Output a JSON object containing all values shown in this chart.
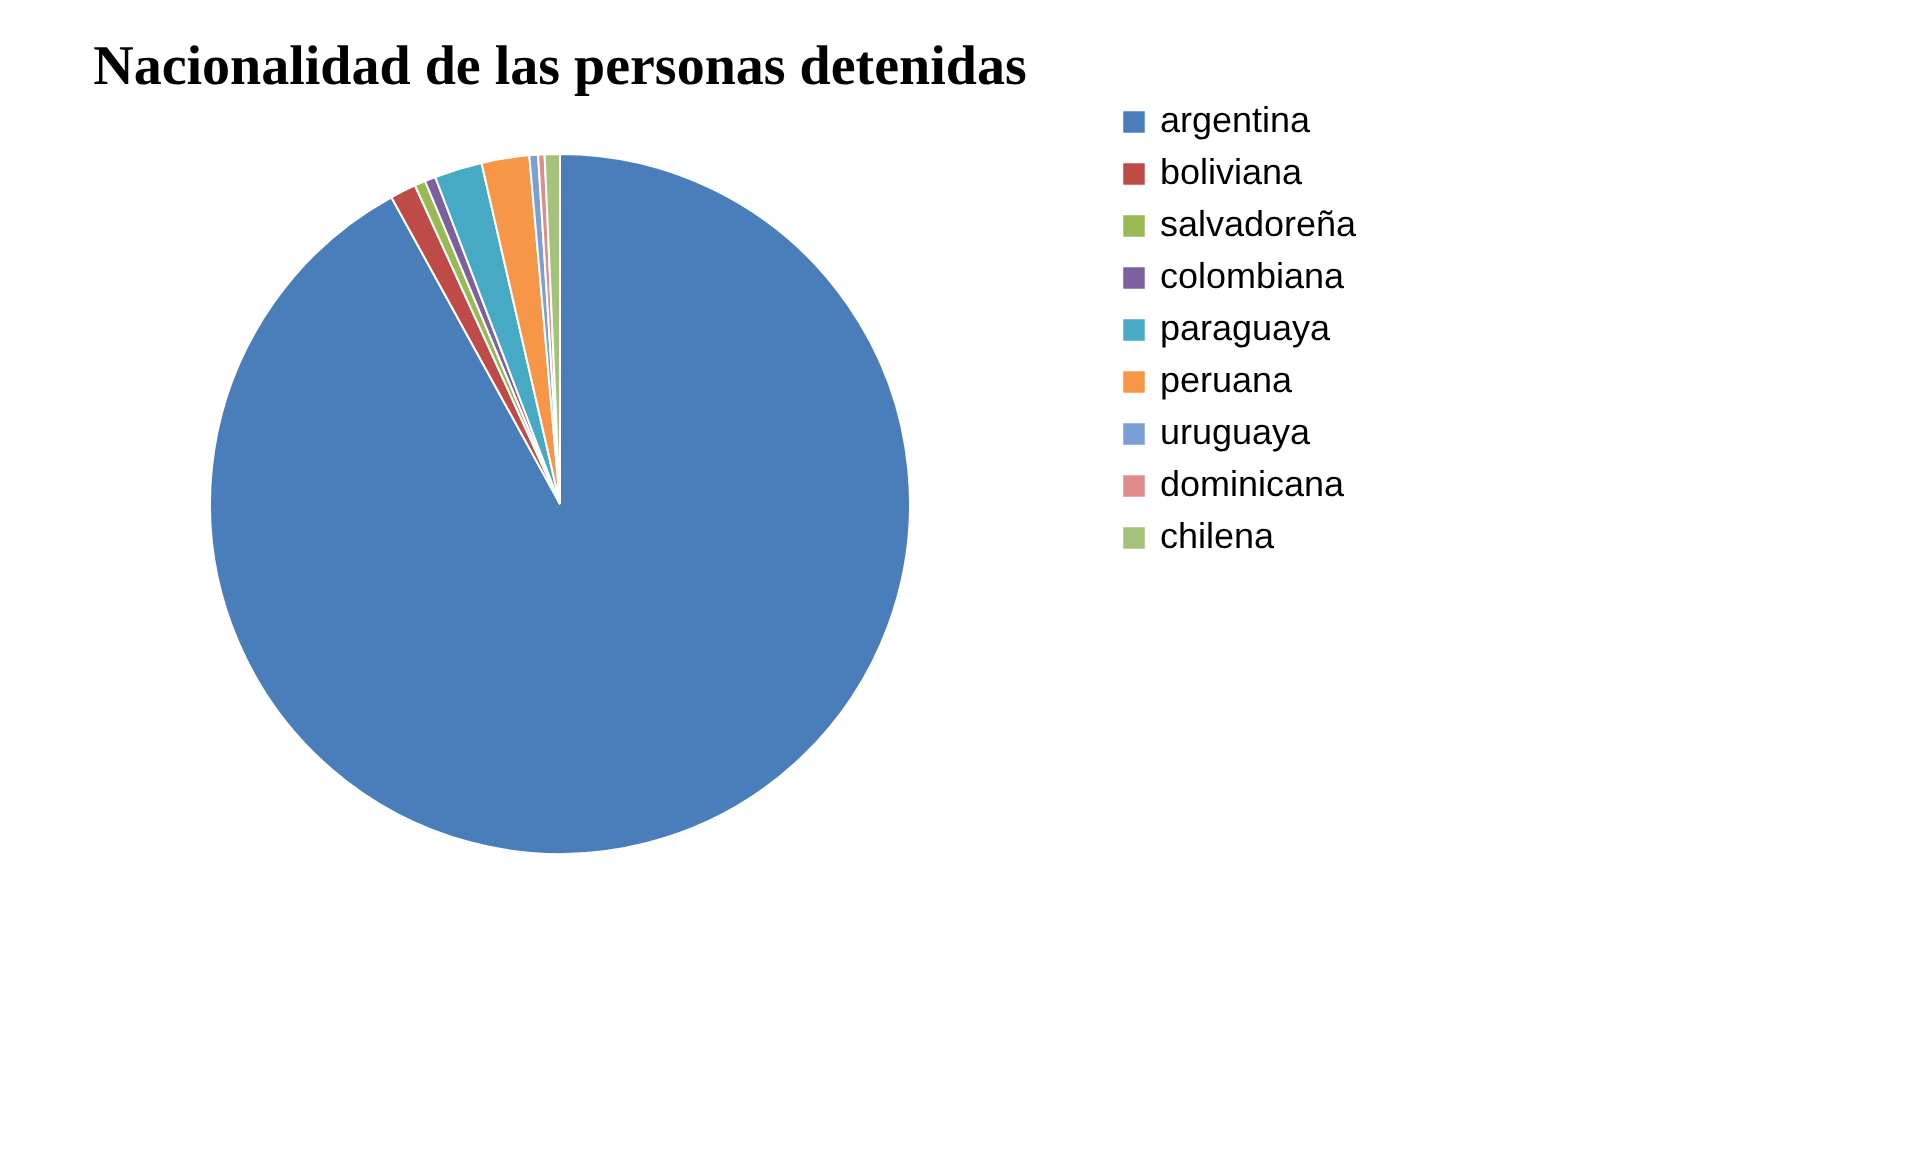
{
  "chart_data": {
    "type": "pie",
    "title": "Nacionalidad de las personas detenidas",
    "categories": [
      "argentina",
      "boliviana",
      "salvadoreña",
      "colombiana",
      "paraguaya",
      "peruana",
      "uruguaya",
      "dominicana",
      "chilena"
    ],
    "values": [
      92.0,
      1.2,
      0.5,
      0.5,
      2.2,
      2.2,
      0.4,
      0.3,
      0.7
    ],
    "colors": [
      "#4a7ebb",
      "#be4b48",
      "#98b954",
      "#7d60a0",
      "#46aac5",
      "#f79646",
      "#7c9ed4",
      "#e08c8c",
      "#a4c27a"
    ],
    "legend": "right"
  }
}
